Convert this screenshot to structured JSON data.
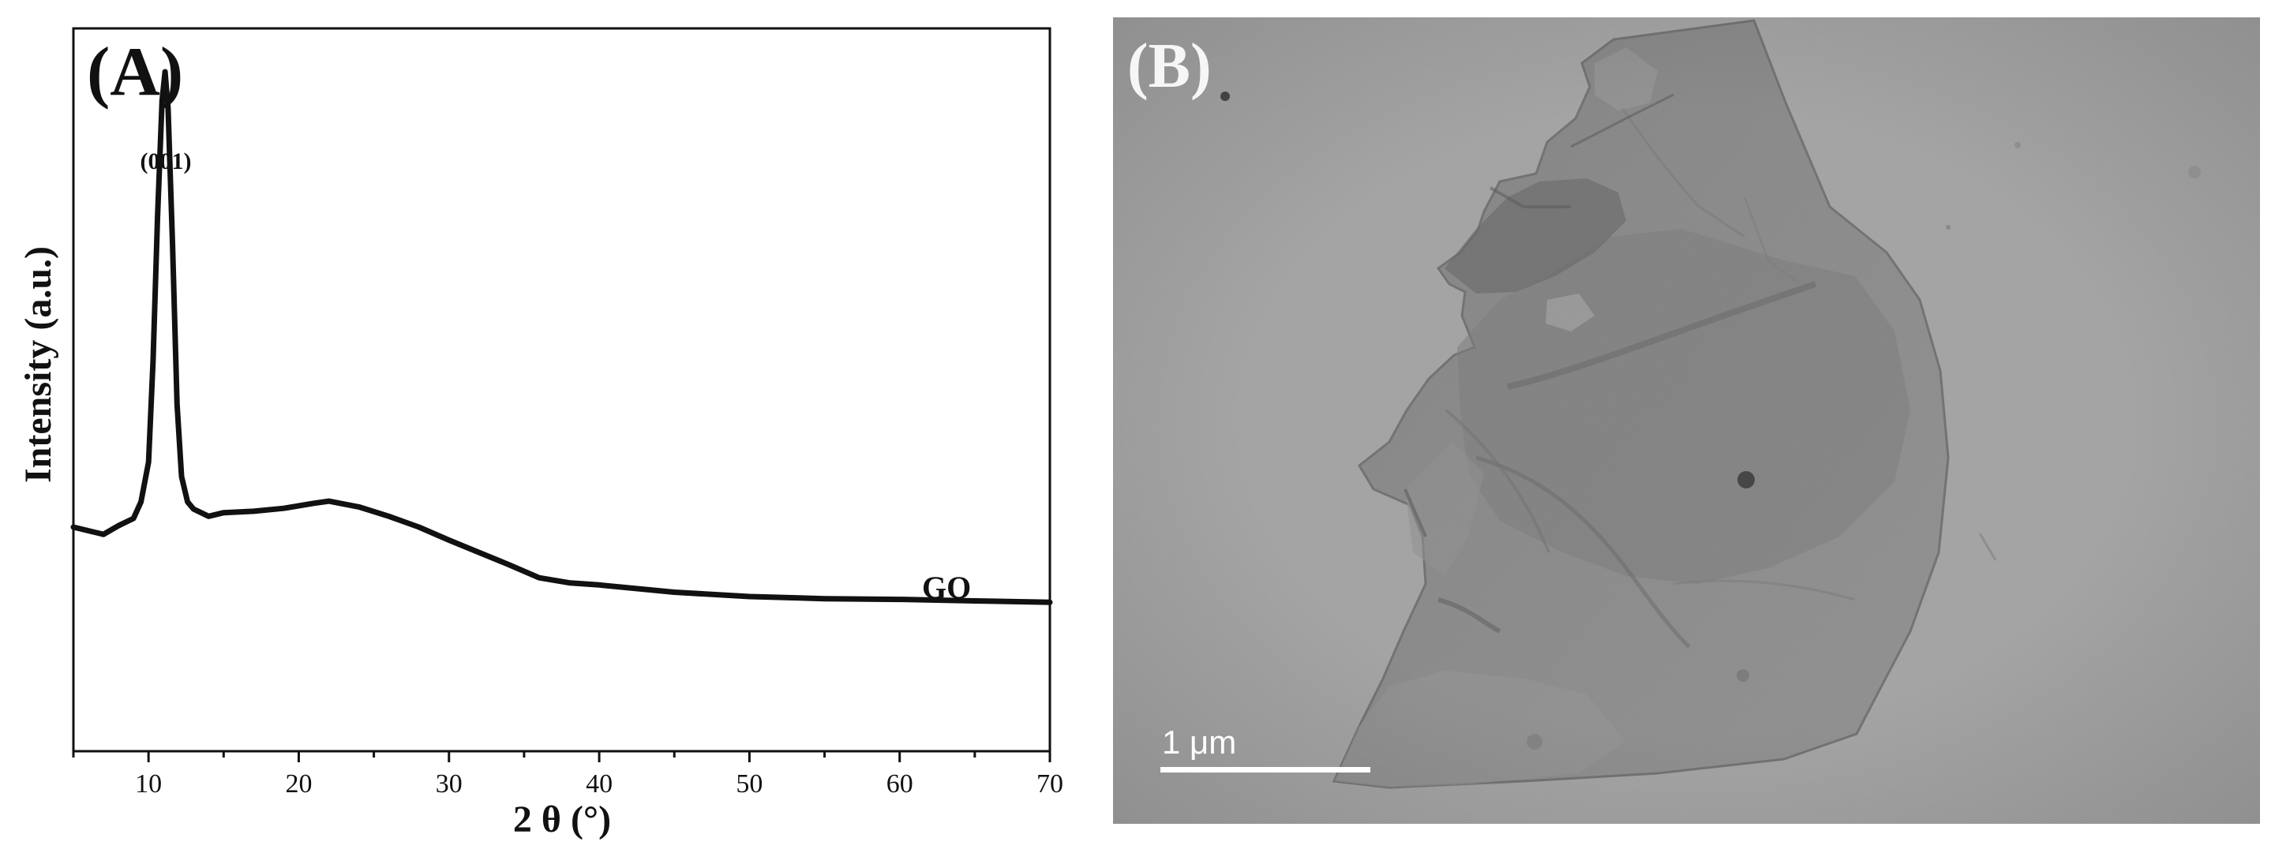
{
  "panel_a": {
    "label": "(A)",
    "peak_label": "(001)",
    "series_label": "GO",
    "line_color": "#111111"
  },
  "panel_b": {
    "label": "(B)",
    "scale_bar_label": "1 μm",
    "image_type": "TEM micrograph of graphene oxide sheet",
    "background_color": "#a9a9a9"
  },
  "chart_data": {
    "type": "line",
    "title": "",
    "xlabel": "2 θ (°)",
    "ylabel": "Intensity (a.u.)",
    "xlim": [
      5,
      70
    ],
    "ylim": [
      0,
      100
    ],
    "xticks": [
      10,
      20,
      30,
      40,
      50,
      60,
      70
    ],
    "xtick_labels": [
      "10",
      "20",
      "30",
      "40",
      "50",
      "60",
      "70"
    ],
    "y_ticks_shown": false,
    "grid": false,
    "legend": "none",
    "series": [
      {
        "name": "GO",
        "x": [
          5,
          6,
          7,
          8,
          9,
          9.5,
          10,
          10.3,
          10.6,
          10.9,
          11.1,
          11.3,
          11.6,
          11.9,
          12.2,
          12.6,
          13,
          14,
          15,
          17,
          19,
          21,
          22,
          24,
          26,
          28,
          30,
          32,
          34,
          36,
          38,
          40,
          45,
          50,
          55,
          60,
          65,
          70
        ],
        "y": [
          31,
          30.5,
          30,
          31.2,
          32.2,
          34.5,
          40,
          54,
          74,
          90,
          94,
          89,
          70,
          48,
          38,
          34.5,
          33.5,
          32.5,
          33,
          33.2,
          33.6,
          34.3,
          34.6,
          33.8,
          32.5,
          31,
          29.2,
          27.5,
          25.8,
          24,
          23.3,
          23,
          22,
          21.4,
          21.1,
          21,
          20.8,
          20.6
        ]
      }
    ]
  }
}
